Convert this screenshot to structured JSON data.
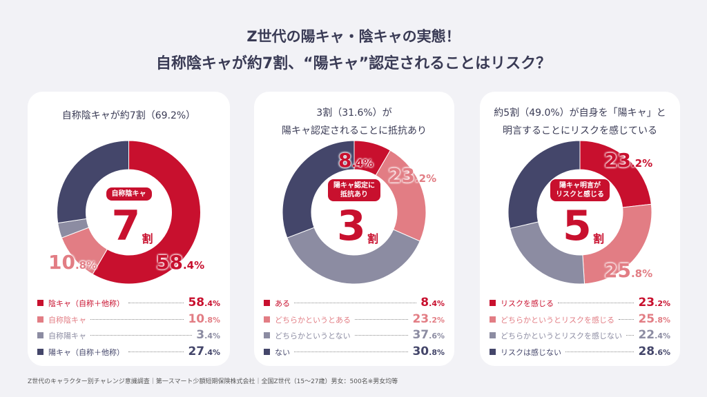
{
  "title": {
    "line1": "Z世代の陽キャ・陰キャの実態！",
    "line2": "自称陰キャが約7割、“陽キャ”認定されることはリスク？"
  },
  "colors": [
    "#c8102e",
    "#e27d84",
    "#8c8ca2",
    "#44466a"
  ],
  "chart_data": [
    {
      "type": "pie",
      "title_lines": [
        "自称陰キャが約7割（69.2%）"
      ],
      "center_label": "自称陰キャ",
      "center_number": "7",
      "center_unit": "割",
      "categories": [
        "陰キャ（自称＋他称）",
        "自称陰キャ",
        "自称陽キャ",
        "陽キャ（自称＋他称）"
      ],
      "values": [
        58.4,
        10.8,
        3.4,
        27.4
      ],
      "labeled": [
        0,
        1
      ]
    },
    {
      "type": "pie",
      "title_lines": [
        "3割（31.6%）が",
        "陽キャ認定されることに抵抗あり"
      ],
      "center_label": "陽キャ認定に\n抵抗あり",
      "center_number": "3",
      "center_unit": "割",
      "categories": [
        "ある",
        "どちらかというとある",
        "どちらかというとない",
        "ない"
      ],
      "values": [
        8.4,
        23.2,
        37.6,
        30.8
      ],
      "labeled": [
        0,
        1
      ]
    },
    {
      "type": "pie",
      "title_lines": [
        "約5割（49.0%）が自身を「陽キャ」と",
        "明言することにリスクを感じている"
      ],
      "center_label": "陽キャ明言が\nリスクと感じる",
      "center_number": "5",
      "center_unit": "割",
      "categories": [
        "リスクを感じる",
        "どちらかというとリスクを感じる",
        "どちらかというとリスクを感じない",
        "リスクは感じない"
      ],
      "values": [
        23.2,
        25.8,
        22.4,
        28.6
      ],
      "labeled": [
        0,
        1
      ]
    }
  ],
  "footer": "Z世代のキャラクター別チャレンジ意識調査｜第一スマート少額短期保険株式会社｜全国Z世代（15～27歳）男女：500名※男女均等"
}
